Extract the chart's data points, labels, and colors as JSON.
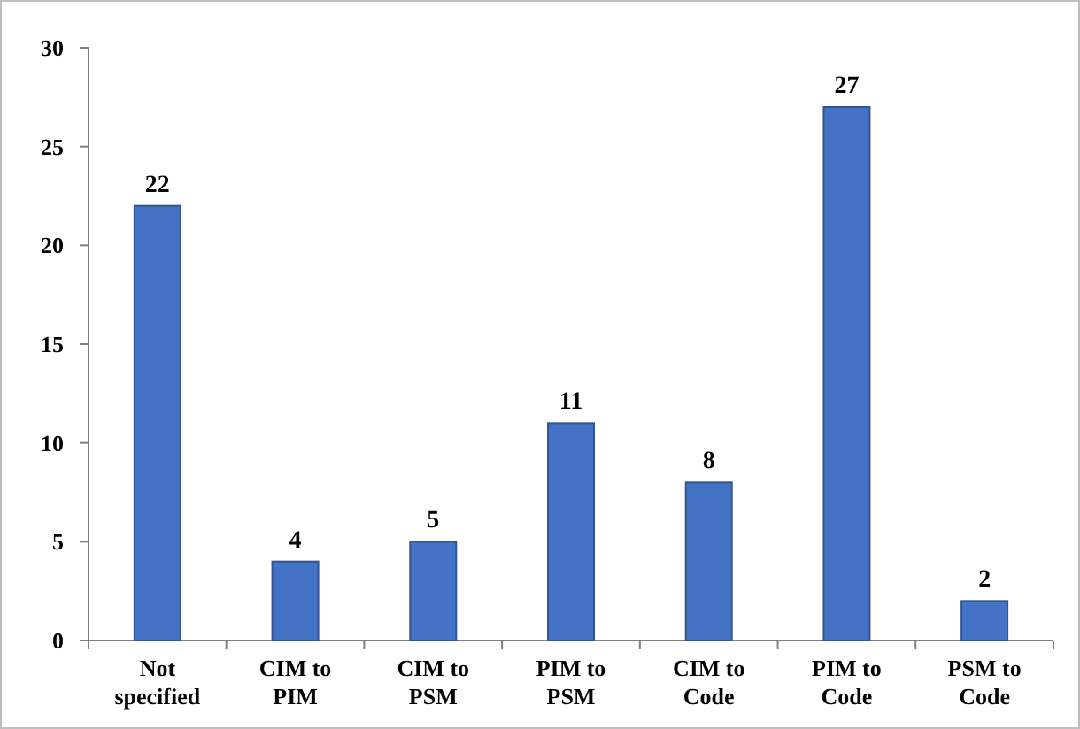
{
  "chart_data": {
    "type": "bar",
    "categories": [
      "Not specified",
      "CIM to PIM",
      "CIM to PSM",
      "PIM to PSM",
      "CIM to Code",
      "PIM to Code",
      "PSM to Code"
    ],
    "values": [
      22,
      4,
      5,
      11,
      8,
      27,
      2
    ],
    "color": "#4472c4",
    "ylim": [
      0,
      30
    ],
    "yticks": [
      0,
      5,
      10,
      15,
      20,
      25,
      30
    ],
    "grid": false,
    "data_labels": true
  }
}
